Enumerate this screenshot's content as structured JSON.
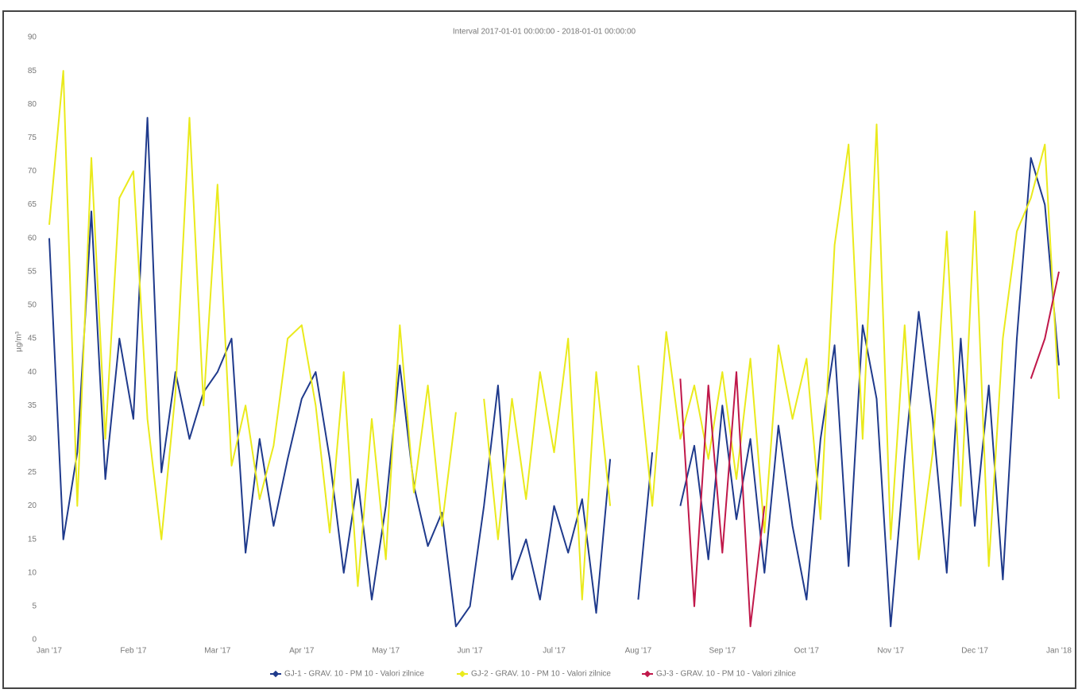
{
  "chart_data": {
    "type": "line",
    "title": "Interval 2017-01-01 00:00:00 - 2018-01-01 00:00:00",
    "y_label": "µg/m³",
    "categories": [
      "Jan '17",
      null,
      null,
      null,
      null,
      null,
      "Feb '17",
      null,
      null,
      null,
      null,
      null,
      "Mar '17",
      null,
      null,
      null,
      null,
      null,
      "Apr '17",
      null,
      null,
      null,
      null,
      null,
      "May '17",
      null,
      null,
      null,
      null,
      null,
      "Jun '17",
      null,
      null,
      null,
      null,
      null,
      "Jul '17",
      null,
      null,
      null,
      null,
      null,
      "Aug '17",
      null,
      null,
      null,
      null,
      null,
      "Sep '17",
      null,
      null,
      null,
      null,
      null,
      "Oct '17",
      null,
      null,
      null,
      null,
      null,
      "Nov '17",
      null,
      null,
      null,
      null,
      null,
      "Dec '17",
      null,
      null,
      null,
      null,
      null,
      "Jan '18"
    ],
    "series": [
      {
        "name": "GJ-1 - GRAV. 10 - PM 10 - Valori zilnice",
        "color": "#1f3a8c",
        "values": [
          60,
          15,
          28,
          64,
          24,
          45,
          33,
          78,
          25,
          40,
          30,
          37,
          40,
          45,
          13,
          30,
          17,
          27,
          36,
          40,
          27,
          10,
          24,
          6,
          20,
          41,
          23,
          14,
          19,
          2,
          5,
          20,
          38,
          9,
          15,
          6,
          20,
          13,
          21,
          4,
          27,
          null,
          6,
          28,
          null,
          20,
          29,
          12,
          35,
          18,
          30,
          10,
          32,
          17,
          6,
          30,
          44,
          11,
          47,
          36,
          2,
          27,
          49,
          33,
          10,
          45,
          17,
          38,
          9,
          45,
          72,
          65,
          41
        ]
      },
      {
        "name": "GJ-2 - GRAV. 10 - PM 10 - Valori zilnice",
        "color": "#eaea1c",
        "values": [
          62,
          85,
          20,
          72,
          30,
          66,
          70,
          33,
          15,
          37,
          78,
          35,
          68,
          26,
          35,
          21,
          29,
          45,
          47,
          35,
          16,
          40,
          8,
          33,
          12,
          47,
          22,
          38,
          17,
          34,
          null,
          36,
          15,
          36,
          21,
          40,
          28,
          45,
          6,
          40,
          20,
          null,
          41,
          20,
          46,
          30,
          38,
          27,
          40,
          24,
          42,
          16,
          44,
          33,
          42,
          18,
          59,
          74,
          30,
          77,
          15,
          47,
          12,
          28,
          61,
          20,
          64,
          11,
          45,
          61,
          66,
          74,
          36
        ]
      },
      {
        "name": "GJ-3 - GRAV. 10 - PM 10 - Valori zilnice",
        "color": "#c0184a",
        "values": [
          null,
          null,
          null,
          null,
          null,
          null,
          null,
          null,
          null,
          null,
          null,
          null,
          null,
          null,
          null,
          null,
          null,
          null,
          null,
          null,
          null,
          null,
          null,
          null,
          null,
          null,
          null,
          null,
          null,
          null,
          null,
          null,
          null,
          null,
          null,
          null,
          null,
          null,
          null,
          null,
          null,
          null,
          null,
          null,
          null,
          39,
          5,
          38,
          13,
          40,
          2,
          20,
          null,
          null,
          null,
          null,
          null,
          null,
          null,
          null,
          null,
          null,
          null,
          null,
          null,
          null,
          null,
          null,
          null,
          null,
          39,
          45,
          55
        ]
      }
    ],
    "ylim": [
      0,
      90
    ],
    "yticks": [
      0,
      5,
      10,
      15,
      20,
      25,
      30,
      35,
      40,
      45,
      50,
      55,
      60,
      65,
      70,
      75,
      80,
      85,
      90
    ]
  }
}
